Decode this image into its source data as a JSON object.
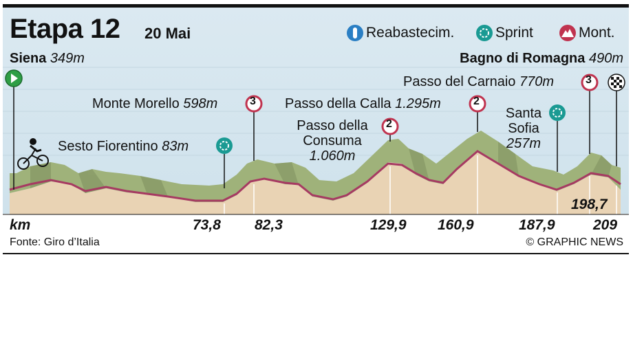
{
  "header": {
    "title": "Etapa 12",
    "date": "20 Mai"
  },
  "legend": {
    "feed_label": "Reabastecim.",
    "sprint_label": "Sprint",
    "mountain_label": "Mont."
  },
  "start": {
    "name": "Siena",
    "altitude": "349m"
  },
  "finish": {
    "name": "Bagno di Romagna",
    "altitude": "490m"
  },
  "points": {
    "sesto": {
      "name": "Sesto Fiorentino",
      "altitude": "83m"
    },
    "morello": {
      "name": "Monte Morello",
      "altitude": "598m",
      "category": "3"
    },
    "consuma": {
      "name_line1": "Passo della",
      "name_line2": "Consuma",
      "altitude": "1.060m",
      "category": "2"
    },
    "calla": {
      "name": "Passo della Calla",
      "altitude": "1.295m",
      "category": "2"
    },
    "sofia": {
      "name_line1": "Santa",
      "name_line2": "Sofia",
      "altitude": "257m"
    },
    "carnaio": {
      "name": "Passo del Carnaio",
      "altitude": "770m",
      "category": "3"
    }
  },
  "axis": {
    "unit": "km",
    "ticks": [
      "73,8",
      "82,3",
      "129,9",
      "160,9",
      "187,9",
      "198,7",
      "209"
    ]
  },
  "footer": {
    "source": "Fonte: Giro d’Italia",
    "credit": "© GRAPHIC NEWS"
  },
  "colors": {
    "sky": "#d4e6ef",
    "grass": "#9fb27a",
    "grass_dark": "#7e8f5e",
    "ground": "#e9d3b4",
    "road": "#a63a62",
    "sprint": "#1a9a93",
    "mountain": "#c0334f",
    "feed": "#2b7fc4",
    "start": "#2e9e45"
  }
}
